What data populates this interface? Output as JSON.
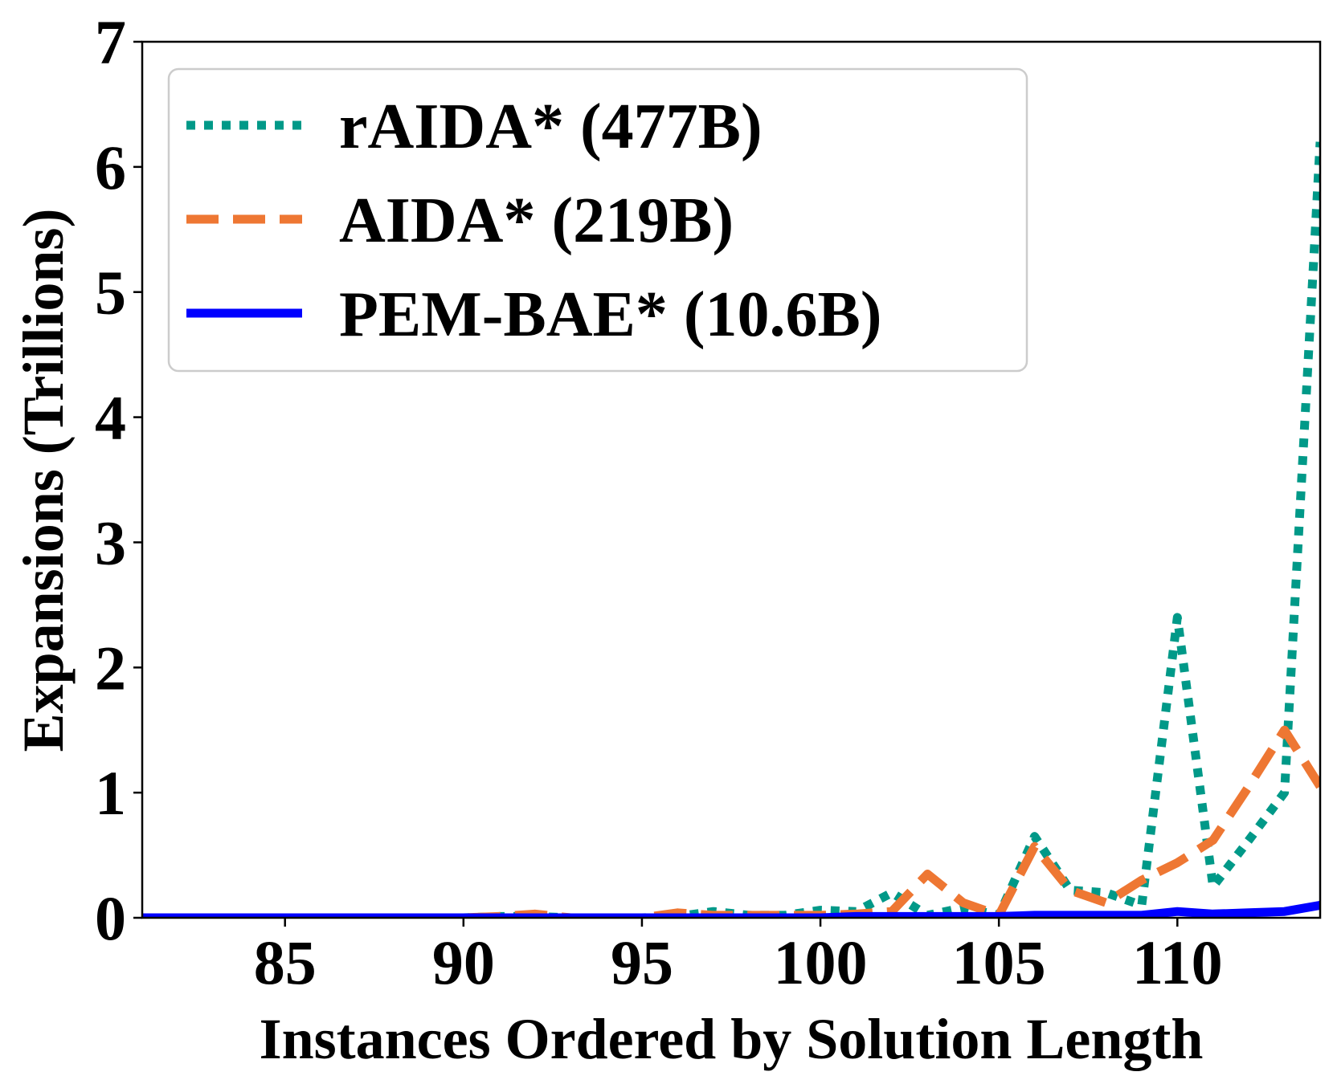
{
  "chart_data": {
    "type": "line",
    "title": "",
    "xlabel": "Instances Ordered by Solution Length",
    "ylabel": "Expansions (Trillions)",
    "xlim": [
      81,
      114
    ],
    "ylim": [
      0,
      7
    ],
    "xticks": [
      85,
      90,
      95,
      100,
      105,
      110
    ],
    "yticks": [
      0,
      1,
      2,
      3,
      4,
      5,
      6,
      7
    ],
    "grid": false,
    "legend_position": "top-left",
    "x": [
      81,
      82,
      83,
      84,
      85,
      86,
      87,
      88,
      89,
      90,
      91,
      92,
      93,
      94,
      95,
      96,
      97,
      98,
      99,
      100,
      101,
      102,
      103,
      104,
      105,
      106,
      107,
      108,
      109,
      110,
      111,
      112,
      113,
      114
    ],
    "series": [
      {
        "name": "rAIDA* (477B)",
        "style": "dotted",
        "color": "#009988",
        "values": [
          0,
          0,
          0,
          0,
          0,
          0,
          0,
          0,
          0,
          0,
          0.01,
          0.01,
          0,
          0,
          0,
          0.01,
          0.05,
          0.02,
          0.02,
          0.06,
          0.05,
          0.2,
          0.02,
          0.08,
          0.02,
          0.65,
          0.22,
          0.2,
          0.1,
          2.4,
          0.25,
          0.62,
          1.0,
          6.2
        ]
      },
      {
        "name": "AIDA* (219B)",
        "style": "dashed",
        "color": "#EE7733",
        "values": [
          0,
          0,
          0,
          0,
          0,
          0,
          0,
          0,
          0,
          0,
          0.01,
          0.03,
          0,
          0,
          0,
          0.04,
          0.02,
          0.02,
          0.02,
          0.02,
          0.03,
          0.05,
          0.35,
          0.12,
          0.02,
          0.57,
          0.22,
          0.12,
          0.3,
          0.44,
          0.62,
          1.05,
          1.5,
          1.05
        ]
      },
      {
        "name": "PEM-BAE* (10.6B)",
        "style": "solid",
        "color": "#0000FF",
        "values": [
          0,
          0,
          0,
          0,
          0,
          0,
          0,
          0,
          0,
          0,
          0,
          0,
          0,
          0,
          0,
          0,
          0,
          0,
          0,
          0,
          0.01,
          0.01,
          0.01,
          0.01,
          0.01,
          0.02,
          0.02,
          0.02,
          0.02,
          0.05,
          0.03,
          0.04,
          0.05,
          0.1
        ]
      }
    ]
  }
}
